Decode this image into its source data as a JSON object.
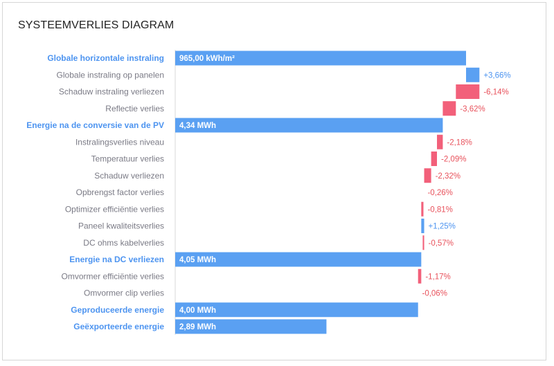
{
  "title": "SYSTEEMVERLIES DIAGRAM",
  "colors": {
    "total": "#5aa0f2",
    "increase": "#5aa0f2",
    "decrease": "#f2607a",
    "total_label": "#4d94f0",
    "loss_text": "#e8525c"
  },
  "chart_data": {
    "type": "bar",
    "subtype": "waterfall-horizontal",
    "xlim": [
      0,
      100
    ],
    "rows": [
      {
        "label": "Globale horizontale instraling",
        "kind": "total",
        "start": 0,
        "end": 100,
        "value_label": "965,00 kWh/m²"
      },
      {
        "label": "Globale instraling op panelen",
        "kind": "increase",
        "start": 100,
        "end": 104.6,
        "value_label": "+3,66%"
      },
      {
        "label": "Schaduw instraling verliezen",
        "kind": "decrease",
        "start": 104.6,
        "end": 96.5,
        "value_label": "-6,14%"
      },
      {
        "label": "Reflectie verlies",
        "kind": "decrease",
        "start": 96.5,
        "end": 92.0,
        "value_label": "-3,62%"
      },
      {
        "label": "Energie na de conversie van de PV",
        "kind": "total",
        "start": 0,
        "end": 92.0,
        "value_label": "4,34 MWh"
      },
      {
        "label": "Instralingsverlies niveau",
        "kind": "decrease",
        "start": 92.0,
        "end": 90.0,
        "value_label": "-2,18%"
      },
      {
        "label": "Temperatuur verlies",
        "kind": "decrease",
        "start": 90.0,
        "end": 88.0,
        "value_label": "-2,09%"
      },
      {
        "label": "Schaduw verliezen",
        "kind": "decrease",
        "start": 88.0,
        "end": 85.6,
        "value_label": "-2,32%"
      },
      {
        "label": "Opbrengst factor verlies",
        "kind": "decrease",
        "start": 85.6,
        "end": 85.35,
        "value_label": "-0,26%"
      },
      {
        "label": "Optimizer efficiëntie verlies",
        "kind": "decrease",
        "start": 85.35,
        "end": 84.6,
        "value_label": "-0,81%"
      },
      {
        "label": "Paneel kwaliteitsverlies",
        "kind": "increase",
        "start": 84.6,
        "end": 85.6,
        "value_label": "+1,25%"
      },
      {
        "label": "DC ohms kabelverlies",
        "kind": "decrease",
        "start": 85.6,
        "end": 85.1,
        "value_label": "-0,57%"
      },
      {
        "label": "Energie na DC verliezen",
        "kind": "total",
        "start": 0,
        "end": 84.6,
        "value_label": "4,05 MWh"
      },
      {
        "label": "Omvormer efficiëntie verlies",
        "kind": "decrease",
        "start": 84.6,
        "end": 83.5,
        "value_label": "-1,17%"
      },
      {
        "label": "Omvormer clip verlies",
        "kind": "decrease",
        "start": 83.5,
        "end": 83.45,
        "value_label": "-0,06%"
      },
      {
        "label": "Geproduceerde energie",
        "kind": "total",
        "start": 0,
        "end": 83.5,
        "value_label": "4,00 MWh"
      },
      {
        "label": "Geëxporteerde energie",
        "kind": "total",
        "start": 0,
        "end": 52.0,
        "value_label": "2,89 MWh"
      }
    ]
  }
}
